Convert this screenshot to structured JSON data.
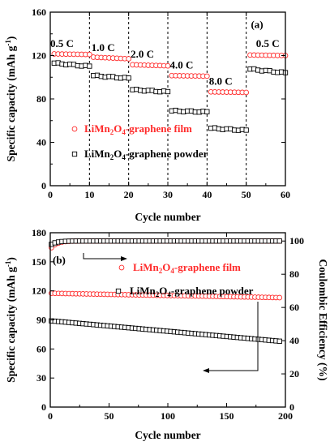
{
  "colors": {
    "film": "#ff2b2b",
    "powder": "#000000"
  },
  "chart_data": [
    {
      "type": "scatter",
      "panel_label": "(a)",
      "xlabel": "Cycle number",
      "ylabel": "Specific capacity (mAh g⁻¹)",
      "xlim": [
        0,
        60
      ],
      "ylim": [
        0,
        160
      ],
      "x_ticks": [
        0,
        10,
        20,
        30,
        40,
        50,
        60
      ],
      "y_ticks": [
        0,
        40,
        80,
        120,
        160
      ],
      "rate_labels": [
        {
          "text": "0.5 C",
          "x": 3,
          "y": 128
        },
        {
          "text": "1.0 C",
          "x": 13.5,
          "y": 124
        },
        {
          "text": "2.0 C",
          "x": 23.5,
          "y": 118
        },
        {
          "text": "4.0 C",
          "x": 33.5,
          "y": 108
        },
        {
          "text": "8.0 C",
          "x": 43.5,
          "y": 93
        },
        {
          "text": "0.5 C",
          "x": 55.5,
          "y": 128
        }
      ],
      "dividers": [
        10,
        20,
        30,
        40,
        50
      ],
      "series": [
        {
          "name": "LiMn₂O₄-graphene film",
          "marker": "circle",
          "segments": [
            {
              "x0": 1,
              "x1": 10,
              "y0": 121.5,
              "y1": 121
            },
            {
              "x0": 11,
              "x1": 20,
              "y0": 118.5,
              "y1": 117
            },
            {
              "x0": 21,
              "x1": 30,
              "y0": 111.5,
              "y1": 110.5
            },
            {
              "x0": 31,
              "x1": 40,
              "y0": 101.5,
              "y1": 101
            },
            {
              "x0": 41,
              "x1": 50,
              "y0": 86.5,
              "y1": 86
            },
            {
              "x0": 51,
              "x1": 60,
              "y0": 120.5,
              "y1": 120
            }
          ]
        },
        {
          "name": "LiMn₂O₄-graphene powder",
          "marker": "square",
          "segments": [
            {
              "x0": 1,
              "x1": 10,
              "y0": 113,
              "y1": 110
            },
            {
              "x0": 11,
              "x1": 20,
              "y0": 101.5,
              "y1": 99
            },
            {
              "x0": 21,
              "x1": 30,
              "y0": 88.5,
              "y1": 86.5
            },
            {
              "x0": 31,
              "x1": 40,
              "y0": 69,
              "y1": 68
            },
            {
              "x0": 41,
              "x1": 50,
              "y0": 53,
              "y1": 51
            },
            {
              "x0": 51,
              "x1": 60,
              "y0": 107.5,
              "y1": 104
            }
          ]
        }
      ],
      "legend": [
        {
          "marker": "circle",
          "text_main": "LiMn",
          "sub1": "2",
          "mid": "O",
          "sub2": "4",
          "tail": "-graphene film"
        },
        {
          "marker": "square",
          "text_main": "LiMn",
          "sub1": "2",
          "mid": "O",
          "sub2": "4",
          "tail": "-graphene powder"
        }
      ]
    },
    {
      "type": "scatter",
      "panel_label": "(b)",
      "xlabel": "Cycle number",
      "ylabel": "Specific capacity (mAh g⁻¹)",
      "y2label": "Coulombic Efficiency (%)",
      "xlim": [
        0,
        200
      ],
      "ylim": [
        0,
        180
      ],
      "y2lim": [
        0,
        105
      ],
      "x_ticks": [
        0,
        50,
        100,
        150,
        200
      ],
      "y_ticks": [
        0,
        30,
        60,
        90,
        120,
        150,
        180
      ],
      "y2_ticks": [
        0,
        20,
        40,
        60,
        80,
        100
      ],
      "series": [
        {
          "name": "LiMn₂O₄-graphene film capacity",
          "marker": "circle",
          "axis": "left",
          "x0": 1,
          "x1": 195,
          "y0": 117.5,
          "y1": 113
        },
        {
          "name": "LiMn₂O₄-graphene powder capacity",
          "marker": "square",
          "axis": "left",
          "x0": 1,
          "x1": 195,
          "y0": 89,
          "y1": 68
        },
        {
          "name": "LiMn₂O₄-graphene film efficiency",
          "marker": "circle",
          "axis": "right",
          "x0": 1,
          "x1": 195,
          "y0": 96,
          "y1": 100
        },
        {
          "name": "LiMn₂O₄-graphene powder efficiency",
          "marker": "square",
          "axis": "right",
          "x0": 1,
          "x1": 195,
          "y0": 98,
          "y1": 100
        }
      ],
      "legend": [
        {
          "marker": "circle",
          "text_main": "LiMn",
          "sub1": "2",
          "mid": "O",
          "sub2": "4",
          "tail": "-graphene film"
        },
        {
          "marker": "square",
          "text_main": "LiMn",
          "sub1": "2",
          "mid": "O",
          "sub2": "4",
          "tail": "-graphene powder"
        }
      ]
    }
  ]
}
